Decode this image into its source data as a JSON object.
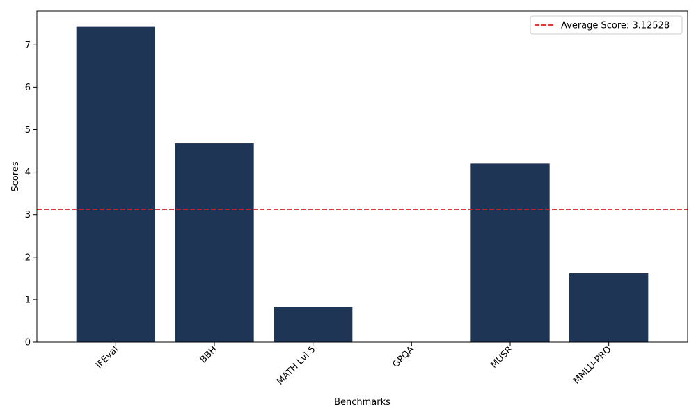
{
  "chart_data": {
    "type": "bar",
    "title": "",
    "xlabel": "Benchmarks",
    "ylabel": "Scores",
    "categories": [
      "IFEval",
      "BBH",
      "MATH Lvl 5",
      "GPQA",
      "MUSR",
      "MMLU-PRO"
    ],
    "values": [
      7.42,
      4.68,
      0.83,
      0.0,
      4.2,
      1.62
    ],
    "ylim": [
      0,
      7.79
    ],
    "yticks": [
      "0",
      "1",
      "2",
      "3",
      "4",
      "5",
      "6",
      "7"
    ],
    "bar_color": "#1f3556",
    "average": {
      "value": 3.12528,
      "label": "Average Score: 3.12528",
      "color": "#e31a1c"
    },
    "legend_position": "top-right",
    "grid": false,
    "xtick_rotation": 45
  }
}
